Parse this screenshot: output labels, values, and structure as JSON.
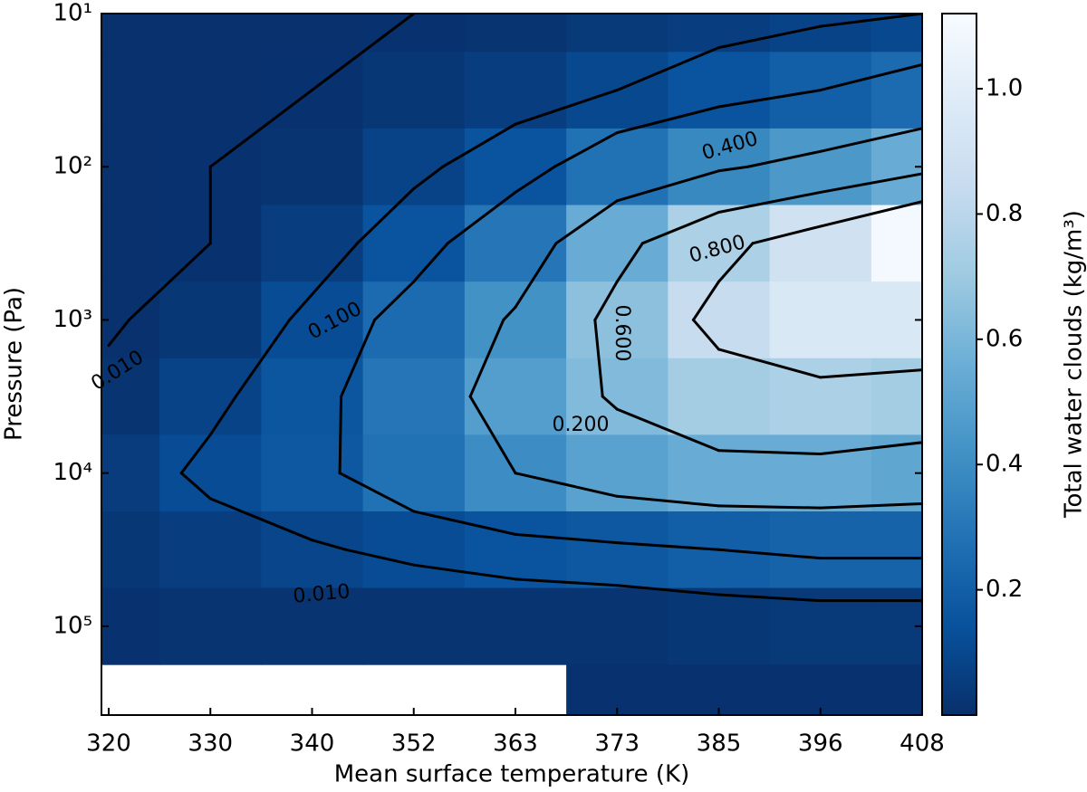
{
  "chart_data": {
    "type": "heatmap",
    "xlabel": "Mean surface temperature (K)",
    "ylabel": "Pressure (Pa)",
    "categories": [
      "320",
      "330",
      "340",
      "352",
      "363",
      "373",
      "385",
      "396",
      "408"
    ],
    "y": [
      10,
      31.62,
      100,
      316.2,
      1000,
      3162,
      10000,
      31623,
      100000,
      316228
    ],
    "log_y": true,
    "y_inverted": true,
    "ylim": [
      10,
      380000
    ],
    "yticks": [
      {
        "value": 10,
        "label": "10¹"
      },
      {
        "value": 100,
        "label": "10²"
      },
      {
        "value": 1000,
        "label": "10³"
      },
      {
        "value": 10000,
        "label": "10⁴"
      },
      {
        "value": 100000,
        "label": "10⁵"
      }
    ],
    "z": [
      [
        0.005,
        0.005,
        0.005,
        0.01,
        0.02,
        0.04,
        0.06,
        0.08,
        0.1
      ],
      [
        0.005,
        0.005,
        0.01,
        0.03,
        0.06,
        0.1,
        0.15,
        0.2,
        0.25
      ],
      [
        0.005,
        0.01,
        0.02,
        0.08,
        0.15,
        0.28,
        0.38,
        0.45,
        0.55
      ],
      [
        0.005,
        0.01,
        0.06,
        0.15,
        0.3,
        0.55,
        0.75,
        0.9,
        1.1
      ],
      [
        0.005,
        0.03,
        0.12,
        0.25,
        0.42,
        0.65,
        0.85,
        0.95,
        0.95
      ],
      [
        0.02,
        0.08,
        0.16,
        0.3,
        0.48,
        0.62,
        0.72,
        0.75,
        0.72
      ],
      [
        0.05,
        0.12,
        0.17,
        0.28,
        0.4,
        0.5,
        0.55,
        0.55,
        0.52
      ],
      [
        0.03,
        0.06,
        0.09,
        0.12,
        0.15,
        0.17,
        0.2,
        0.22,
        0.22
      ],
      [
        0.01,
        0.02,
        0.02,
        0.02,
        0.02,
        0.02,
        0.03,
        0.04,
        0.04
      ],
      [
        null,
        null,
        null,
        null,
        null,
        0.01,
        0.01,
        0.01,
        0.01
      ]
    ],
    "zlim": [
      0,
      1.12
    ],
    "zticks": [
      0.2,
      0.4,
      0.6,
      0.8,
      {
        "value": 1,
        "label": "1.0"
      }
    ],
    "colorbar_label": "Total water clouds (kg/m³)",
    "colormap": [
      "#08306b",
      "#08519c",
      "#2171b5",
      "#4292c6",
      "#6baed6",
      "#9ecae1",
      "#c6dbef",
      "#deebf7",
      "#f7fbff"
    ],
    "contour_color": "#000000",
    "contour_levels": [
      {
        "value": 0.01,
        "label": "0.010"
      },
      {
        "value": 0.1,
        "label": "0.100"
      },
      {
        "value": 0.2,
        "label": "0.200"
      },
      {
        "value": 0.4,
        "label": "0.400"
      },
      {
        "value": 0.6,
        "label": "0.600"
      },
      {
        "value": 0.8,
        "label": "0.800"
      }
    ]
  }
}
